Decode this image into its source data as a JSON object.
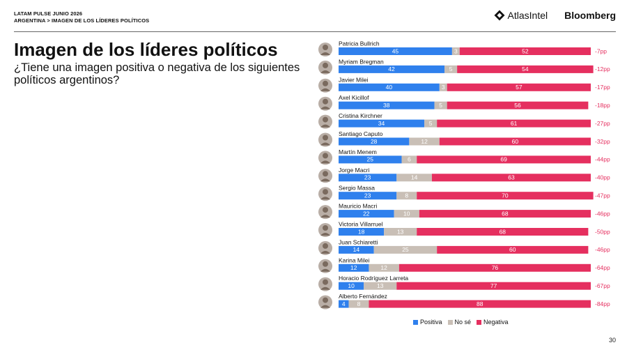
{
  "header": {
    "line1": "LATAM PULSE JUNIO 2026",
    "line2": "ARGENTINA > IMAGEN DE LOS LÍDERES POLÍTICOS",
    "brand1": "AtlasIntel",
    "brand2": "Bloomberg"
  },
  "title": "Imagen de los líderes políticos",
  "subtitle": "¿Tiene una imagen positiva o negativa de los siguientes políticos argentinos?",
  "page_number": "30",
  "colors": {
    "positiva": "#2f80ed",
    "no_se": "#c9bfb6",
    "negativa": "#e52f5f",
    "diff": "#e52f5f"
  },
  "legend": [
    "Positiva",
    "No sé",
    "Negativa"
  ],
  "chart_data": {
    "type": "bar",
    "stacked": true,
    "orientation": "horizontal",
    "categories": [
      "Patricia Bullrich",
      "Myriam Bregman",
      "Javier Milei",
      "Axel Kicillof",
      "Cristina Kirchner",
      "Santiago Caputo",
      "Martín Menem",
      "Jorge Macri",
      "Sergio Massa",
      "Mauricio Macri",
      "Victoria Villarruel",
      "Juan Schiaretti",
      "Karina Milei",
      "Horacio Rodríguez Larreta",
      "Alberto Fernández"
    ],
    "series": [
      {
        "name": "Positiva",
        "values": [
          45,
          42,
          40,
          38,
          34,
          28,
          25,
          23,
          23,
          22,
          18,
          14,
          12,
          10,
          4
        ]
      },
      {
        "name": "No sé",
        "values": [
          3,
          5,
          3,
          5,
          5,
          12,
          6,
          14,
          8,
          10,
          13,
          25,
          12,
          13,
          8
        ]
      },
      {
        "name": "Negativa",
        "values": [
          52,
          54,
          57,
          56,
          61,
          60,
          69,
          63,
          70,
          68,
          68,
          60,
          76,
          77,
          88
        ]
      }
    ],
    "differences": [
      "-7pp",
      "-12pp",
      "-17pp",
      "-18pp",
      "-27pp",
      "-32pp",
      "-44pp",
      "-40pp",
      "-47pp",
      "-46pp",
      "-50pp",
      "-46pp",
      "-64pp",
      "-67pp",
      "-84pp"
    ],
    "xlim": [
      0,
      100
    ]
  }
}
